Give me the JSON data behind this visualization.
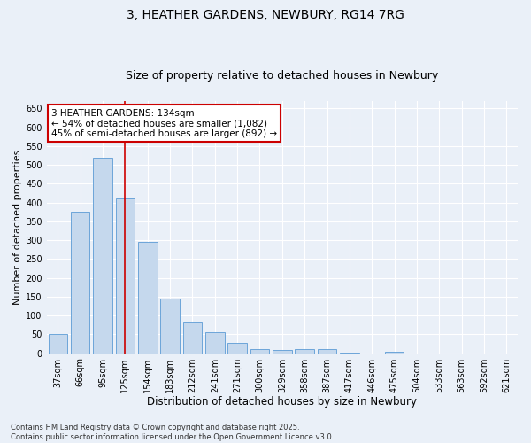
{
  "title1": "3, HEATHER GARDENS, NEWBURY, RG14 7RG",
  "title2": "Size of property relative to detached houses in Newbury",
  "xlabel": "Distribution of detached houses by size in Newbury",
  "ylabel": "Number of detached properties",
  "categories": [
    "37sqm",
    "66sqm",
    "95sqm",
    "125sqm",
    "154sqm",
    "183sqm",
    "212sqm",
    "241sqm",
    "271sqm",
    "300sqm",
    "329sqm",
    "358sqm",
    "387sqm",
    "417sqm",
    "446sqm",
    "475sqm",
    "504sqm",
    "533sqm",
    "563sqm",
    "592sqm",
    "621sqm"
  ],
  "values": [
    50,
    375,
    520,
    410,
    295,
    145,
    83,
    55,
    28,
    10,
    8,
    11,
    11,
    2,
    0,
    3,
    0,
    0,
    0,
    0,
    0
  ],
  "bar_color": "#c5d8ed",
  "bar_edge_color": "#5b9bd5",
  "red_line_index": 3,
  "annotation_line1": "3 HEATHER GARDENS: 134sqm",
  "annotation_line2": "← 54% of detached houses are smaller (1,082)",
  "annotation_line3": "45% of semi-detached houses are larger (892) →",
  "annotation_box_color": "#ffffff",
  "annotation_box_edge": "#cc0000",
  "footnote": "Contains HM Land Registry data © Crown copyright and database right 2025.\nContains public sector information licensed under the Open Government Licence v3.0.",
  "ylim": [
    0,
    670
  ],
  "yticks": [
    0,
    50,
    100,
    150,
    200,
    250,
    300,
    350,
    400,
    450,
    500,
    550,
    600,
    650
  ],
  "bg_color": "#eaf0f8",
  "plot_bg_color": "#eaf0f8",
  "grid_color": "#ffffff",
  "title_fontsize": 10,
  "subtitle_fontsize": 9,
  "tick_fontsize": 7,
  "xlabel_fontsize": 8.5,
  "ylabel_fontsize": 8,
  "annotation_fontsize": 7.5,
  "footnote_fontsize": 6
}
